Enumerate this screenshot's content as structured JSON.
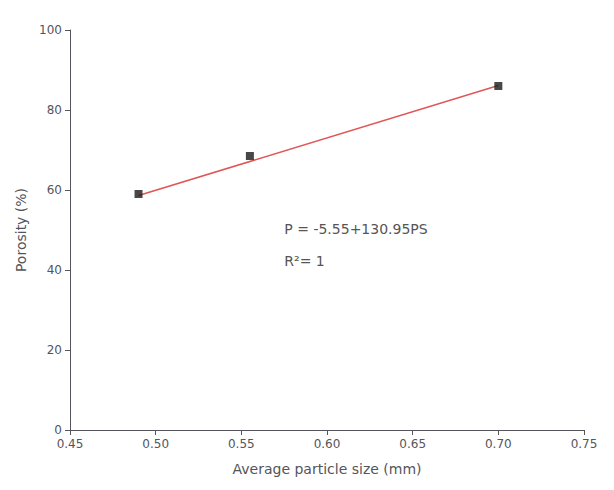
{
  "chart_data": {
    "type": "scatter",
    "xlabel": "Average particle size (mm)",
    "ylabel": "Porosity (%)",
    "series": [
      {
        "type": "line",
        "color": "#e05555",
        "line_style": "solid",
        "x": [
          0.49,
          0.7
        ],
        "values": [
          58.6155,
          86.115
        ]
      },
      {
        "type": "scatter",
        "color": "#1a1a1a",
        "marker": "square",
        "x": [
          0.49,
          0.555,
          0.7
        ],
        "values": [
          59.0,
          68.5,
          86.0
        ]
      }
    ],
    "annotations": [
      {
        "text": "P = -5.55+130.95PS",
        "color": "#555555"
      },
      {
        "text": "R²= 1",
        "color": "#555555"
      }
    ],
    "xlim": [
      0.45,
      0.75
    ],
    "ylim": [
      0,
      100
    ],
    "xticks": [
      0.45,
      {
        "value": 0.5,
        "label": "0.50"
      },
      0.55,
      {
        "value": 0.6,
        "label": "0.60"
      },
      0.65,
      {
        "value": 0.7,
        "label": "0.70"
      },
      0.75
    ],
    "yticks": [
      0,
      20,
      40,
      60,
      80,
      100
    ],
    "grid": false
  }
}
